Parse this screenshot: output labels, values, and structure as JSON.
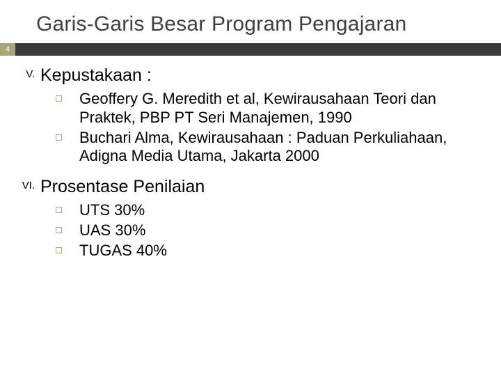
{
  "title": "Garis-Garis Besar Program Pengajaran",
  "pageNumber": "4",
  "accentColor": "#a9a57c",
  "dividerColor": "#3a3a3a",
  "sections": [
    {
      "roman": "V.",
      "heading": "Kepustakaan :",
      "items": [
        "Geoffery G. Meredith et al, Kewirausahaan Teori dan Praktek, PBP PT Seri Manajemen, 1990",
        "Buchari Alma, Kewirausahaan : Paduan Perkuliahaan, Adigna Media Utama, Jakarta 2000"
      ]
    },
    {
      "roman": "VI.",
      "heading": "Prosentase Penilaian",
      "items": [
        "UTS 30%",
        "UAS 30%",
        "TUGAS 40%"
      ]
    }
  ]
}
